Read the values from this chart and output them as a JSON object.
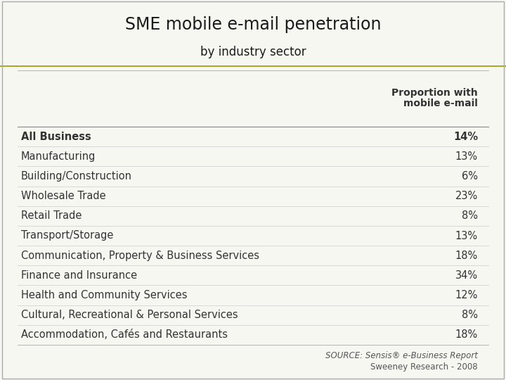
{
  "title": "SME mobile e-mail penetration",
  "subtitle": "by industry sector",
  "header_col": "Proportion with\nmobile e-mail",
  "rows": [
    {
      "label": "All Business",
      "value": "14%",
      "bold": true
    },
    {
      "label": "Manufacturing",
      "value": "13%",
      "bold": false
    },
    {
      "label": "Building/Construction",
      "value": "6%",
      "bold": false
    },
    {
      "label": "Wholesale Trade",
      "value": "23%",
      "bold": false
    },
    {
      "label": "Retail Trade",
      "value": "8%",
      "bold": false
    },
    {
      "label": "Transport/Storage",
      "value": "13%",
      "bold": false
    },
    {
      "label": "Communication, Property & Business Services",
      "value": "18%",
      "bold": false
    },
    {
      "label": "Finance and Insurance",
      "value": "34%",
      "bold": false
    },
    {
      "label": "Health and Community Services",
      "value": "12%",
      "bold": false
    },
    {
      "label": "Cultural, Recreational & Personal Services",
      "value": "8%",
      "bold": false
    },
    {
      "label": "Accommodation, Cafés and Restaurants",
      "value": "18%",
      "bold": false
    }
  ],
  "source_line1": "SOURCE: Sensis® e-Business Report",
  "source_line2": "Sweeney Research - 2008",
  "header_bg": "#c8c800",
  "table_bg": "#f7f7f2",
  "border_color": "#aaaaaa",
  "text_color": "#333333",
  "title_fontsize": 17,
  "subtitle_fontsize": 12,
  "row_fontsize": 10.5,
  "header_fontsize": 10,
  "source_fontsize": 8.5
}
